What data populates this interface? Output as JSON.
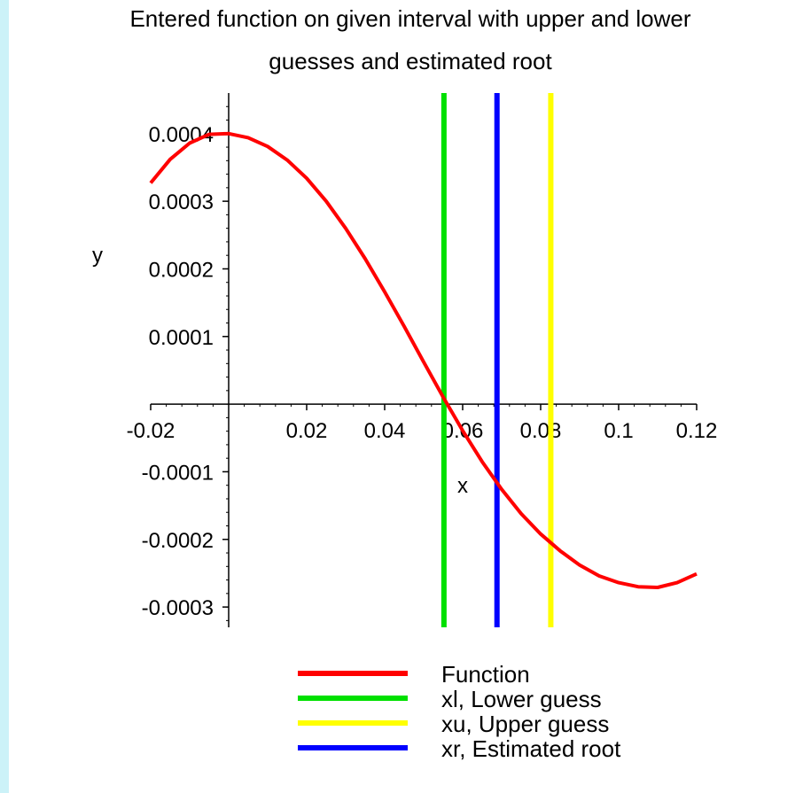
{
  "chart_data": {
    "type": "line",
    "title_lines": [
      "Entered function on given interval with upper and lower",
      "guesses and estimated root"
    ],
    "xlabel": "x",
    "ylabel": "y",
    "xlim": [
      -0.02,
      0.12
    ],
    "ylim": [
      -0.00033,
      0.00046
    ],
    "x_ticks": [
      {
        "value": -0.02,
        "label": "-0.02"
      },
      {
        "value": 0.02,
        "label": "0.02"
      },
      {
        "value": 0.04,
        "label": "0.04"
      },
      {
        "value": 0.06,
        "label": "0.06"
      },
      {
        "value": 0.08,
        "label": "0.08"
      },
      {
        "value": 0.1,
        "label": "0.1"
      },
      {
        "value": 0.12,
        "label": "0.12"
      }
    ],
    "y_ticks": [
      {
        "value": 0.0004,
        "label": "0.0004"
      },
      {
        "value": 0.0003,
        "label": "0.0003"
      },
      {
        "value": 0.0002,
        "label": "0.0002"
      },
      {
        "value": 0.0001,
        "label": "0.0001"
      },
      {
        "value": -0.0001,
        "label": "-0.0001"
      },
      {
        "value": -0.0002,
        "label": "-0.0002"
      },
      {
        "value": -0.0003,
        "label": "-0.0003"
      }
    ],
    "function": {
      "name": "Function",
      "color": "#ff0000",
      "x": [
        -0.02,
        -0.015,
        -0.01,
        -0.005,
        0.0,
        0.005,
        0.01,
        0.015,
        0.02,
        0.025,
        0.03,
        0.035,
        0.04,
        0.045,
        0.05,
        0.055,
        0.06,
        0.065,
        0.07,
        0.075,
        0.08,
        0.085,
        0.09,
        0.095,
        0.1,
        0.105,
        0.11,
        0.115,
        0.12
      ],
      "y": [
        0.000327,
        0.000362,
        0.000386,
        0.000399,
        0.0004,
        0.000394,
        0.000381,
        0.000361,
        0.000334,
        0.0003,
        0.00026,
        0.000215,
        0.000166,
        0.000115,
        6.22e-05,
        1.04e-05,
        -3.92e-05,
        -8.51e-05,
        -0.000126,
        -0.000162,
        -0.000192,
        -0.000217,
        -0.000238,
        -0.000254,
        -0.000264,
        -0.00027,
        -0.000271,
        -0.000264,
        -0.000251
      ]
    },
    "vertical_lines": [
      {
        "name": "xl, Lower guess",
        "x": 0.0552,
        "color": "#00e000"
      },
      {
        "name": "xr, Estimated root",
        "x": 0.0688,
        "color": "#0000ff"
      },
      {
        "name": "xu, Upper guess",
        "x": 0.0826,
        "color": "#ffff00"
      }
    ],
    "legend": {
      "placement": "bottom",
      "entries": [
        {
          "label": "Function",
          "color": "#ff0000"
        },
        {
          "label": "xl, Lower guess",
          "color": "#00e000"
        },
        {
          "label": "xu, Upper guess",
          "color": "#ffff00"
        },
        {
          "label": "xr, Estimated root",
          "color": "#0000ff"
        }
      ]
    },
    "grid": false
  }
}
